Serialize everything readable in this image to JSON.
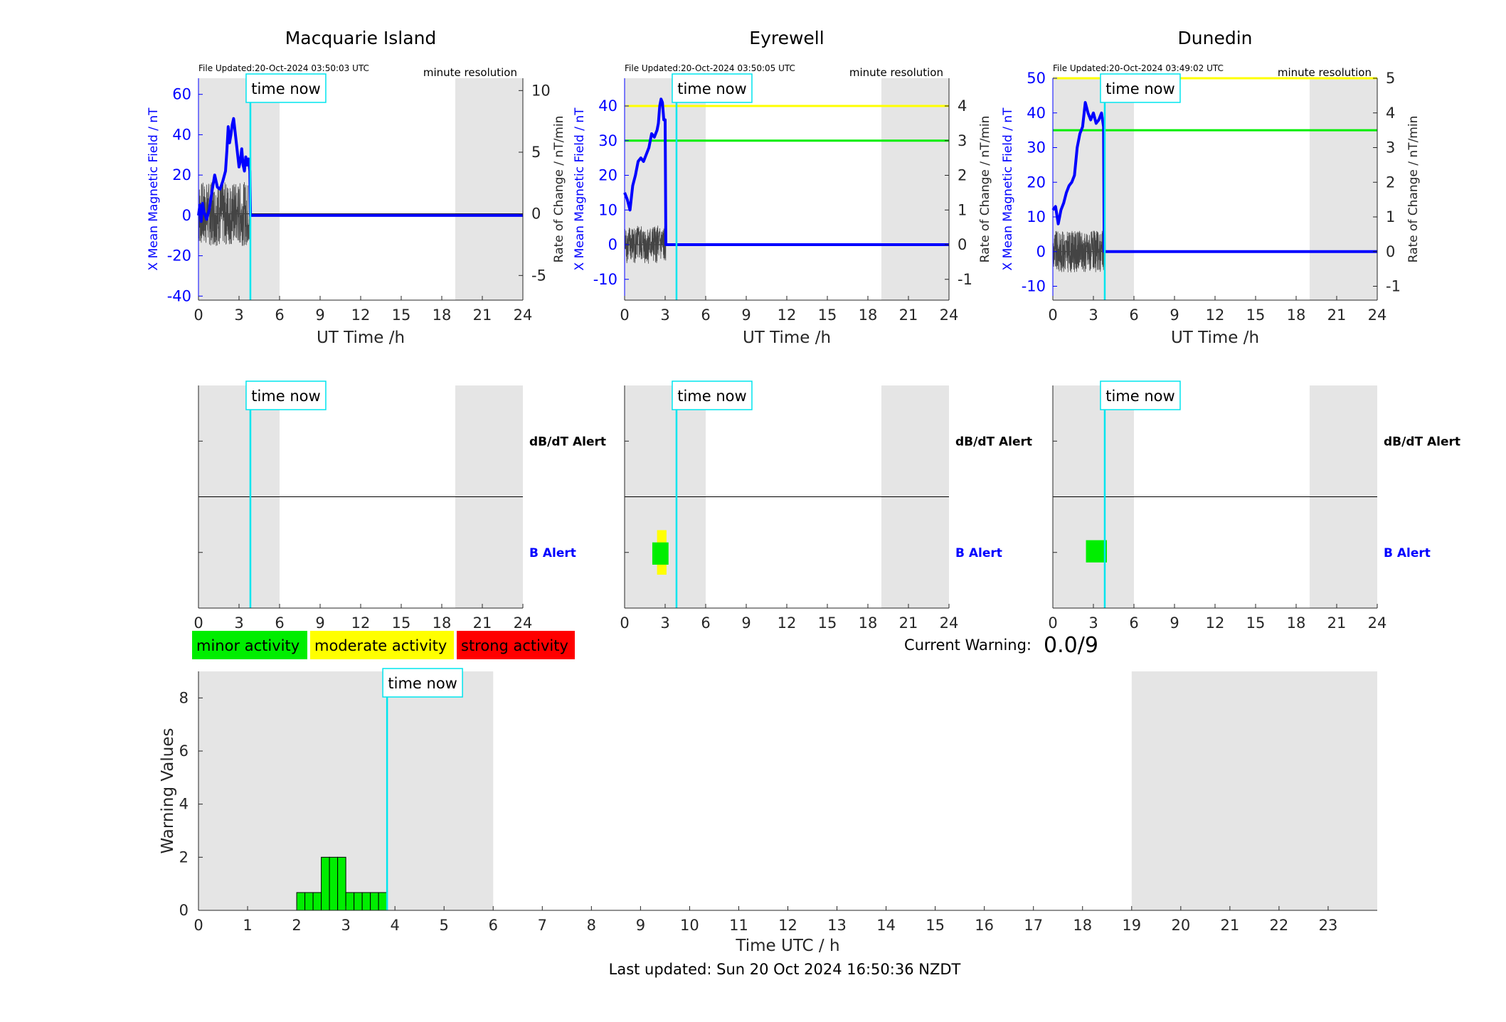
{
  "figure": {
    "time_now_label": "time now",
    "footer": "Last updated: Sun 20 Oct 2024 16:50:36 NZDT",
    "current_warning_label": "Current Warning:",
    "current_warning_value": "0.0/9",
    "legend": [
      {
        "label": "minor activity",
        "color": "#00ee00"
      },
      {
        "label": "moderate activity",
        "color": "#ffff00"
      },
      {
        "label": "strong activity",
        "color": "#ff0000"
      }
    ],
    "alert_labels": {
      "dbdt": "dB/dT Alert",
      "b": "B Alert"
    },
    "colors": {
      "field": "#0000ff",
      "rate": "#444444",
      "time_now": "#00e5ee",
      "night_shading": "#e5e5e5",
      "threshold_yellow": "#ffff00",
      "threshold_green": "#00ee00"
    },
    "time_now_hour": 3.84,
    "night_shading_hours": [
      [
        0,
        6
      ],
      [
        19,
        24
      ]
    ]
  },
  "chart_data": [
    {
      "type": "line",
      "title": "Macquarie Island",
      "file_updated": "File Updated:20-Oct-2024 03:50:03 UTC",
      "resolution": "minute resolution",
      "xlabel": "UT Time /h",
      "ylabel_left": "X Mean Magnetic Field / nT",
      "ylabel_right": "Rate of Change / nT/min",
      "xlim": [
        0,
        24
      ],
      "xticks": [
        0,
        3,
        6,
        9,
        12,
        15,
        18,
        21,
        24
      ],
      "ylim_left": [
        -42,
        68
      ],
      "yticks_left": [
        -40,
        -20,
        0,
        20,
        40,
        60
      ],
      "ylim_right": [
        -7,
        11
      ],
      "yticks_right": [
        -5,
        0,
        5,
        10
      ],
      "thresholds_left": [],
      "field_series": {
        "name": "X Mean Magnetic Field",
        "x": [
          0,
          0.1,
          0.2,
          0.3,
          0.4,
          0.5,
          0.6,
          0.8,
          1.0,
          1.2,
          1.4,
          1.6,
          1.8,
          2.0,
          2.1,
          2.2,
          2.3,
          2.4,
          2.5,
          2.6,
          2.7,
          2.8,
          2.9,
          3.0,
          3.1,
          3.2,
          3.3,
          3.4,
          3.5,
          3.6,
          3.7,
          3.8,
          3.85,
          24
        ],
        "y": [
          0,
          5,
          -3,
          6,
          2,
          0,
          -2,
          3,
          12,
          20,
          14,
          13,
          17,
          22,
          32,
          44,
          36,
          40,
          45,
          48,
          42,
          36,
          30,
          24,
          27,
          33,
          25,
          22,
          29,
          25,
          28,
          22,
          0,
          0
        ]
      },
      "rate_series": {
        "name": "Rate of Change",
        "x_start": 0,
        "x_end": 3.85,
        "amplitude": 2.6
      },
      "alert_panel": {
        "ylim": [
          0,
          2
        ],
        "markers": []
      }
    },
    {
      "type": "line",
      "title": "Eyrewell",
      "file_updated": "File Updated:20-Oct-2024 03:50:05 UTC",
      "resolution": "minute resolution",
      "xlabel": "UT Time /h",
      "ylabel_left": "X Mean Magnetic Field / nT",
      "ylabel_right": "Rate of Change / nT/min",
      "xlim": [
        0,
        24
      ],
      "xticks": [
        0,
        3,
        6,
        9,
        12,
        15,
        18,
        21,
        24
      ],
      "ylim_left": [
        -16,
        48
      ],
      "yticks_left": [
        -10,
        0,
        10,
        20,
        30,
        40
      ],
      "ylim_right": [
        -1.6,
        4.8
      ],
      "yticks_right": [
        -1,
        0,
        1,
        2,
        3,
        4
      ],
      "thresholds_left": [
        {
          "value": 40,
          "color": "#ffff00"
        },
        {
          "value": 30,
          "color": "#00ee00"
        }
      ],
      "field_series": {
        "name": "X Mean Magnetic Field",
        "x": [
          0,
          0.2,
          0.4,
          0.6,
          0.8,
          1.0,
          1.2,
          1.4,
          1.6,
          1.8,
          2.0,
          2.2,
          2.4,
          2.5,
          2.6,
          2.7,
          2.8,
          2.9,
          3.0,
          3.05,
          24
        ],
        "y": [
          15,
          13,
          10,
          17,
          20,
          24,
          25,
          24,
          26,
          28,
          32,
          31,
          33,
          35,
          40,
          42,
          41,
          36,
          36,
          0,
          0
        ]
      },
      "rate_series": {
        "name": "Rate of Change",
        "x_start": 0,
        "x_end": 3.05,
        "amplitude": 0.55
      },
      "alert_panel": {
        "ylim": [
          0,
          2
        ],
        "markers": [
          {
            "x": [
              2.4,
              3.1
            ],
            "y": [
              0.3,
              0.7
            ],
            "color": "#ffff00"
          },
          {
            "x": [
              2.05,
              3.25
            ],
            "y": [
              0.39,
              0.59
            ],
            "color": "#00ee00"
          }
        ]
      }
    },
    {
      "type": "line",
      "title": "Dunedin",
      "file_updated": "File Updated:20-Oct-2024 03:49:02 UTC",
      "resolution": "minute resolution",
      "xlabel": "UT Time /h",
      "ylabel_left": "X Mean Magnetic Field / nT",
      "ylabel_right": "Rate of Change / nT/min",
      "xlim": [
        0,
        24
      ],
      "xticks": [
        0,
        3,
        6,
        9,
        12,
        15,
        18,
        21,
        24
      ],
      "ylim_left": [
        -14,
        50
      ],
      "yticks_left": [
        -10,
        0,
        10,
        20,
        30,
        40,
        50
      ],
      "ylim_right": [
        -1.4,
        5
      ],
      "yticks_right": [
        -1,
        0,
        1,
        2,
        3,
        4,
        5
      ],
      "thresholds_left": [
        {
          "value": 50,
          "color": "#ffff00"
        },
        {
          "value": 35,
          "color": "#00ee00"
        }
      ],
      "field_series": {
        "name": "X Mean Magnetic Field",
        "x": [
          0,
          0.2,
          0.4,
          0.6,
          0.8,
          1.0,
          1.2,
          1.4,
          1.6,
          1.8,
          2.0,
          2.2,
          2.4,
          2.6,
          2.8,
          3.0,
          3.2,
          3.4,
          3.6,
          3.75,
          3.8,
          24
        ],
        "y": [
          12,
          13,
          8,
          12,
          14,
          17,
          19,
          20,
          22,
          30,
          34,
          36,
          43,
          40,
          38,
          40,
          37,
          38,
          40,
          36,
          0,
          0
        ]
      },
      "rate_series": {
        "name": "Rate of Change",
        "x_start": 0,
        "x_end": 3.8,
        "amplitude": 0.6
      },
      "alert_panel": {
        "ylim": [
          0,
          2
        ],
        "markers": [
          {
            "x": [
              2.45,
              4.0
            ],
            "y": [
              0.41,
              0.61
            ],
            "color": "#00ee00"
          }
        ]
      }
    },
    {
      "type": "bar",
      "ylabel": "Warning Values",
      "xlabel": "Time UTC / h",
      "xlim": [
        0,
        24
      ],
      "xticks": [
        0,
        1,
        2,
        3,
        4,
        5,
        6,
        7,
        8,
        9,
        10,
        11,
        12,
        13,
        14,
        15,
        16,
        17,
        18,
        19,
        20,
        21,
        22,
        23
      ],
      "ylim": [
        0,
        9
      ],
      "yticks": [
        0,
        2,
        4,
        6,
        8
      ],
      "bin_width": 0.1667,
      "bar_color": "#00ee00",
      "bars_start": [
        2.0,
        2.1667,
        2.3333,
        2.5,
        2.6667,
        2.8333,
        3.0,
        3.1667,
        3.3333,
        3.5,
        3.6667
      ],
      "bars_value": [
        0.67,
        0.67,
        0.67,
        2.0,
        2.0,
        2.0,
        0.67,
        0.67,
        0.67,
        0.67,
        0.67
      ]
    }
  ]
}
